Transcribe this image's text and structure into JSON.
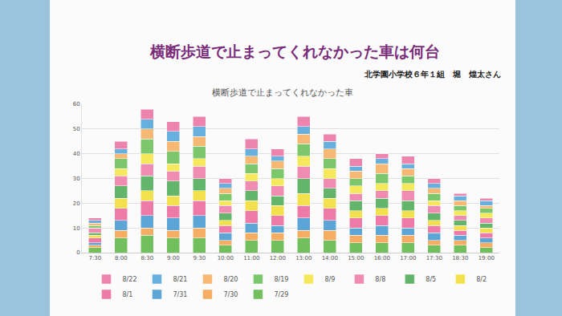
{
  "header": {
    "title": "横断歩道で止まってくれなかった車は何台",
    "author": "北学園小学校６年１組　堀　煌太さん"
  },
  "chart_data": {
    "type": "bar",
    "title": "横断歩道で止まってくれなかった車",
    "stacked": true,
    "grid": true,
    "legend": "bottom",
    "categories": [
      "7:30",
      "8:00",
      "8:30",
      "9:00",
      "9:30",
      "10:00",
      "11:00",
      "12:00",
      "13:00",
      "14:00",
      "15:00",
      "16:00",
      "17:00",
      "17:30",
      "18:30",
      "19:00"
    ],
    "ylim": [
      0,
      60
    ],
    "yticks": [
      0,
      10,
      20,
      30,
      40,
      50,
      60
    ],
    "series": [
      {
        "name": "7/29",
        "color": "#72bf5e",
        "values": [
          2,
          6,
          7,
          6,
          6,
          3,
          5,
          5,
          6,
          5,
          4,
          4,
          4,
          3,
          3,
          2
        ]
      },
      {
        "name": "7/30",
        "color": "#f4ad62",
        "values": [
          1,
          3,
          3,
          3,
          4,
          2,
          3,
          3,
          3,
          4,
          3,
          3,
          3,
          2,
          2,
          2
        ]
      },
      {
        "name": "7/31",
        "color": "#5ba6d6",
        "values": [
          1,
          4,
          5,
          5,
          5,
          3,
          4,
          3,
          5,
          4,
          3,
          4,
          3,
          3,
          2,
          2
        ]
      },
      {
        "name": "8/1",
        "color": "#ee7aa8",
        "values": [
          2,
          5,
          6,
          5,
          6,
          3,
          5,
          4,
          5,
          5,
          4,
          4,
          4,
          3,
          2,
          2
        ]
      },
      {
        "name": "8/2",
        "color": "#f2e04c",
        "values": [
          1,
          4,
          4,
          4,
          4,
          2,
          4,
          4,
          5,
          4,
          3,
          3,
          3,
          2,
          2,
          2
        ]
      },
      {
        "name": "8/5",
        "color": "#62b56a",
        "values": [
          1,
          5,
          6,
          6,
          5,
          3,
          4,
          4,
          6,
          4,
          4,
          4,
          4,
          3,
          2,
          2
        ]
      },
      {
        "name": "8/8",
        "color": "#f08cb2",
        "values": [
          2,
          4,
          5,
          4,
          5,
          3,
          4,
          4,
          5,
          4,
          3,
          3,
          4,
          3,
          2,
          2
        ]
      },
      {
        "name": "8/9",
        "color": "#f5e85a",
        "values": [
          0,
          3,
          4,
          3,
          3,
          2,
          3,
          3,
          4,
          4,
          3,
          3,
          3,
          2,
          2,
          2
        ]
      },
      {
        "name": "8/19",
        "color": "#7cc66c",
        "values": [
          1,
          4,
          6,
          5,
          5,
          3,
          4,
          4,
          5,
          4,
          3,
          4,
          3,
          3,
          2,
          2
        ]
      },
      {
        "name": "8/20",
        "color": "#f6b872",
        "values": [
          1,
          2,
          4,
          4,
          4,
          2,
          3,
          3,
          4,
          4,
          3,
          4,
          3,
          2,
          2,
          1
        ]
      },
      {
        "name": "8/21",
        "color": "#67afdc",
        "values": [
          1,
          2,
          4,
          4,
          4,
          2,
          3,
          2,
          3,
          3,
          2,
          2,
          2,
          2,
          2,
          2
        ]
      },
      {
        "name": "8/22",
        "color": "#ec84ae",
        "values": [
          1,
          3,
          4,
          4,
          4,
          2,
          4,
          3,
          4,
          3,
          3,
          2,
          3,
          2,
          1,
          1
        ]
      }
    ]
  }
}
